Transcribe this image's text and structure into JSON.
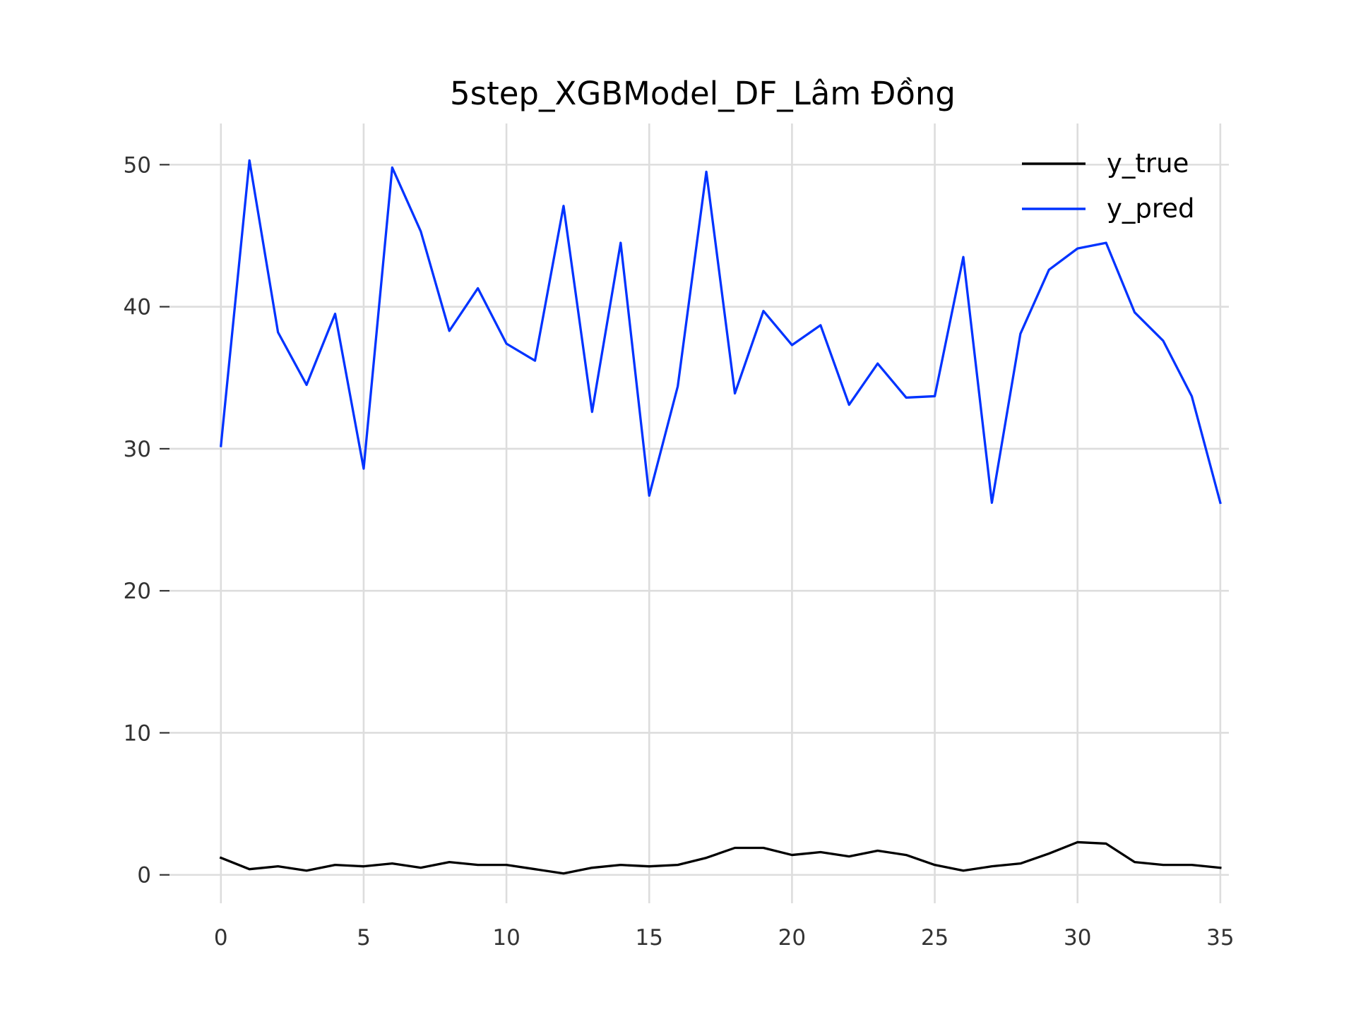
{
  "chart_data": {
    "type": "line",
    "title": "5step_XGBModel_DF_Lâm Đồng",
    "xlabel": "",
    "ylabel": "",
    "x": [
      0,
      1,
      2,
      3,
      4,
      5,
      6,
      7,
      8,
      9,
      10,
      11,
      12,
      13,
      14,
      15,
      16,
      17,
      18,
      19,
      20,
      21,
      22,
      23,
      24,
      25,
      26,
      27,
      28,
      29,
      30,
      31,
      32,
      33,
      34,
      35
    ],
    "xlim": [
      -1.8,
      35.3
    ],
    "ylim": [
      -2.0,
      52.9
    ],
    "xticks": [
      0,
      5,
      10,
      15,
      20,
      25,
      30,
      35
    ],
    "yticks": [
      0,
      10,
      20,
      30,
      40,
      50
    ],
    "grid": true,
    "legend_position": "top-right",
    "series": [
      {
        "name": "y_true",
        "color": "#000000",
        "values": [
          1.2,
          0.4,
          0.6,
          0.3,
          0.7,
          0.6,
          0.8,
          0.5,
          0.9,
          0.7,
          0.7,
          0.4,
          0.1,
          0.5,
          0.7,
          0.6,
          0.7,
          1.2,
          1.9,
          1.9,
          1.4,
          1.6,
          1.3,
          1.7,
          1.4,
          0.7,
          0.3,
          0.6,
          0.8,
          1.5,
          2.3,
          2.2,
          0.9,
          0.7,
          0.7,
          0.5
        ]
      },
      {
        "name": "y_pred",
        "color": "#0033ff",
        "values": [
          30.2,
          50.3,
          38.2,
          34.5,
          39.5,
          28.6,
          49.8,
          45.3,
          38.3,
          41.3,
          37.4,
          36.2,
          47.1,
          32.6,
          44.5,
          26.7,
          34.4,
          49.5,
          33.9,
          39.7,
          37.3,
          38.7,
          33.1,
          36.0,
          33.6,
          33.7,
          43.5,
          26.2,
          38.1,
          42.6,
          44.1,
          44.5,
          39.6,
          37.6,
          33.7,
          26.2
        ]
      }
    ]
  }
}
